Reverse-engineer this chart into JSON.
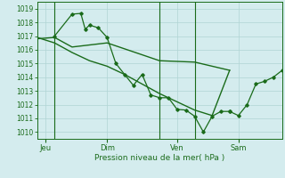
{
  "background_color": "#d4ecee",
  "grid_color": "#b0d4d4",
  "line_color": "#1a6b1a",
  "title": "Pression niveau de la mer( hPa )",
  "x_tick_labels": [
    "Jeu",
    "Dim",
    "Ven",
    "Sam"
  ],
  "ylim": [
    1009.5,
    1019.5
  ],
  "yticks": [
    1010,
    1011,
    1012,
    1013,
    1014,
    1015,
    1016,
    1017,
    1018,
    1019
  ],
  "series1_x": [
    0,
    24,
    48,
    96,
    168,
    216,
    264
  ],
  "series1_y": [
    1016.8,
    1016.9,
    1016.2,
    1016.5,
    1015.2,
    1015.1,
    1014.5
  ],
  "series2_x": [
    0,
    24,
    48,
    72,
    96,
    120,
    144,
    168,
    192,
    216,
    240,
    264
  ],
  "series2_y": [
    1016.9,
    1016.5,
    1015.8,
    1015.2,
    1014.8,
    1014.2,
    1013.5,
    1012.8,
    1012.2,
    1011.6,
    1011.2,
    1014.5
  ],
  "series3_x": [
    24,
    48,
    60,
    66,
    72,
    84,
    96,
    108,
    120,
    132,
    144,
    156,
    168,
    180,
    192,
    204,
    216,
    228,
    240,
    252,
    264
  ],
  "series3_y": [
    1017.0,
    1018.6,
    1018.65,
    1017.5,
    1017.8,
    1017.6,
    1016.9,
    1015.0,
    1014.2,
    1013.4,
    1014.2,
    1012.7,
    1012.5,
    1012.5,
    1011.65,
    1011.6,
    1011.15,
    1010.0,
    1011.15,
    1011.5,
    1011.5
  ],
  "series4_x": [
    264,
    276,
    288,
    300,
    312,
    324,
    336
  ],
  "series4_y": [
    1011.5,
    1011.2,
    1012.0,
    1013.5,
    1013.7,
    1014.0,
    1014.5
  ],
  "day_vlines_x": [
    24,
    168,
    216
  ],
  "xlim": [
    0,
    336
  ],
  "x_tick_positions_x": [
    12,
    96,
    192,
    276
  ],
  "figsize": [
    3.2,
    2.0
  ],
  "dpi": 100
}
